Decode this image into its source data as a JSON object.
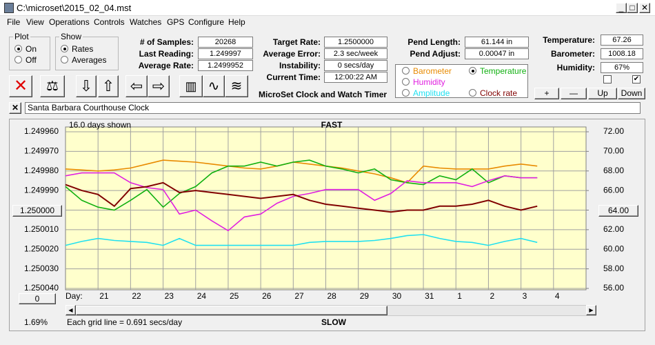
{
  "window": {
    "title": "C:\\microset\\2015_02_04.mst"
  },
  "menu": [
    "File",
    "View",
    "Operations",
    "Controls",
    "Watches",
    "GPS",
    "Configure",
    "Help"
  ],
  "plot_group": {
    "label": "Plot",
    "options": [
      "On",
      "Off"
    ],
    "selected": 0
  },
  "show_group": {
    "label": "Show",
    "options": [
      "Rates",
      "Averages"
    ],
    "selected": 0
  },
  "fields_a": [
    {
      "label": "# of Samples:",
      "value": "20268"
    },
    {
      "label": "Last Reading:",
      "value": "1.249997"
    },
    {
      "label": "Average Rate:",
      "value": "1.2499952"
    }
  ],
  "fields_b": [
    {
      "label": "Target Rate:",
      "value": "1.2500000"
    },
    {
      "label": "Average Error:",
      "value": "2.3 sec/week"
    },
    {
      "label": "Instability:",
      "value": "0 secs/day"
    },
    {
      "label": "Current Time:",
      "value": "12:00:22 AM"
    }
  ],
  "app_name": "MicroSet Clock and Watch Timer",
  "fields_c": [
    {
      "label": "Pend Length:",
      "value": "61.144 in"
    },
    {
      "label": "Pend Adjust:",
      "value": "0.00047 in"
    }
  ],
  "fields_d": [
    {
      "label": "Temperature:",
      "value": "67.26"
    },
    {
      "label": "Barometer:",
      "value": "1008.18"
    },
    {
      "label": "Humidity:",
      "value": "67%"
    }
  ],
  "checkboxes": [
    false,
    true
  ],
  "buttons": [
    "+",
    "—",
    "Up",
    "Down"
  ],
  "clock_name": "Santa Barbara Courthouse Clock",
  "chart_data": {
    "type": "line",
    "days_shown": "16.0 days shown",
    "top_label": "FAST",
    "bottom_label": "SLOW",
    "grid_note": "Each grid line = 0.691 secs/day",
    "percent": "1.69%",
    "x_label": "Day:",
    "offset_button": "0",
    "selected_series": 1,
    "xlim": [
      0,
      16
    ],
    "xticks": [
      {
        "value": 1,
        "label": "21"
      },
      {
        "value": 2,
        "label": "22"
      },
      {
        "value": 3,
        "label": "23"
      },
      {
        "value": 4,
        "label": "24"
      },
      {
        "value": 5,
        "label": "25"
      },
      {
        "value": 6,
        "label": "26"
      },
      {
        "value": 7,
        "label": "27"
      },
      {
        "value": 8,
        "label": "28"
      },
      {
        "value": 9,
        "label": "29"
      },
      {
        "value": 10,
        "label": "30"
      },
      {
        "value": 11,
        "label": "31"
      },
      {
        "value": 12,
        "label": "1"
      },
      {
        "value": 13,
        "label": "2"
      },
      {
        "value": 14,
        "label": "3"
      },
      {
        "value": 15,
        "label": "4"
      }
    ],
    "ylim": [
      1.24996,
      1.25004
    ],
    "yinvert": true,
    "yticks": [
      {
        "value": 1.24996,
        "label": "1.249960"
      },
      {
        "value": 1.24997,
        "label": "1.249970"
      },
      {
        "value": 1.24998,
        "label": "1.249980"
      },
      {
        "value": 1.24999,
        "label": "1.249990"
      },
      {
        "value": 1.25,
        "label": "1.250000"
      },
      {
        "value": 1.25001,
        "label": "1.250010"
      },
      {
        "value": 1.25002,
        "label": "1.250020"
      },
      {
        "value": 1.25003,
        "label": "1.250030"
      },
      {
        "value": 1.25004,
        "label": "1.250040"
      }
    ],
    "y2lim": [
      56,
      72
    ],
    "y2ticks": [
      {
        "value": 72,
        "label": "72.00"
      },
      {
        "value": 70,
        "label": "70.00"
      },
      {
        "value": 68,
        "label": "68.00"
      },
      {
        "value": 66,
        "label": "66.00"
      },
      {
        "value": 64,
        "label": "64.00"
      },
      {
        "value": 62,
        "label": "62.00"
      },
      {
        "value": 60,
        "label": "60.00"
      },
      {
        "value": 58,
        "label": "58.00"
      },
      {
        "value": 56,
        "label": "56.00"
      }
    ],
    "grid": true,
    "x": [
      0,
      0.5,
      1,
      1.5,
      2,
      2.5,
      3,
      3.5,
      4,
      4.5,
      5,
      5.5,
      6,
      6.5,
      7,
      7.5,
      8,
      8.5,
      9,
      9.5,
      10,
      10.5,
      11,
      11.5,
      12,
      12.5,
      13,
      13.5,
      14,
      14.5
    ],
    "series": [
      {
        "name": "Barometer",
        "color": "#e88a00",
        "axis": "y2",
        "values": [
          68.2,
          68.1,
          68.0,
          68.1,
          68.3,
          68.7,
          69.1,
          69.0,
          68.9,
          68.7,
          68.5,
          68.3,
          68.2,
          68.5,
          68.9,
          68.7,
          68.5,
          68.3,
          68.0,
          67.7,
          67.3,
          66.8,
          68.5,
          68.3,
          68.2,
          68.2,
          68.2,
          68.5,
          68.7,
          68.5
        ]
      },
      {
        "name": "Temperature",
        "color": "#10b010",
        "axis": "y2",
        "values": [
          66.4,
          65.0,
          64.3,
          64.0,
          65.0,
          66.1,
          64.3,
          65.7,
          66.4,
          67.8,
          68.5,
          68.5,
          68.9,
          68.5,
          68.9,
          69.1,
          68.5,
          68.2,
          67.8,
          68.2,
          67.1,
          66.8,
          66.6,
          67.5,
          67.1,
          68.2,
          66.8,
          67.5,
          67.3,
          67.3
        ]
      },
      {
        "name": "Humidity",
        "color": "#e020e0",
        "axis": "y2",
        "values": [
          67.5,
          67.8,
          67.8,
          67.8,
          66.8,
          66.3,
          66.1,
          63.6,
          64.0,
          62.9,
          61.9,
          63.3,
          63.6,
          64.7,
          65.4,
          65.7,
          66.1,
          66.1,
          66.1,
          65.0,
          65.7,
          67.0,
          66.8,
          66.8,
          66.8,
          66.4,
          67.0,
          67.5,
          67.3,
          67.3
        ]
      },
      {
        "name": "Amplitude",
        "color": "#20e0f0",
        "axis": "y2",
        "values": [
          60.4,
          60.8,
          61.1,
          60.9,
          60.8,
          60.7,
          60.4,
          61.1,
          60.4,
          60.4,
          60.4,
          60.4,
          60.4,
          60.4,
          60.4,
          60.7,
          60.8,
          60.8,
          60.8,
          60.9,
          61.1,
          61.4,
          61.5,
          61.1,
          60.8,
          60.7,
          60.4,
          60.8,
          61.1,
          60.7
        ]
      },
      {
        "name": "Clock rate",
        "color": "#800000",
        "values": [
          1.249987,
          1.24999,
          1.249992,
          1.249998,
          1.249989,
          1.249988,
          1.249986,
          1.249991,
          1.24999,
          1.249991,
          1.249992,
          1.249993,
          1.249994,
          1.249993,
          1.249992,
          1.249995,
          1.249997,
          1.249998,
          1.249999,
          1.25,
          1.250001,
          1.25,
          1.25,
          1.249998,
          1.249998,
          1.249997,
          1.249995,
          1.249998,
          1.25,
          1.249998
        ]
      }
    ]
  }
}
